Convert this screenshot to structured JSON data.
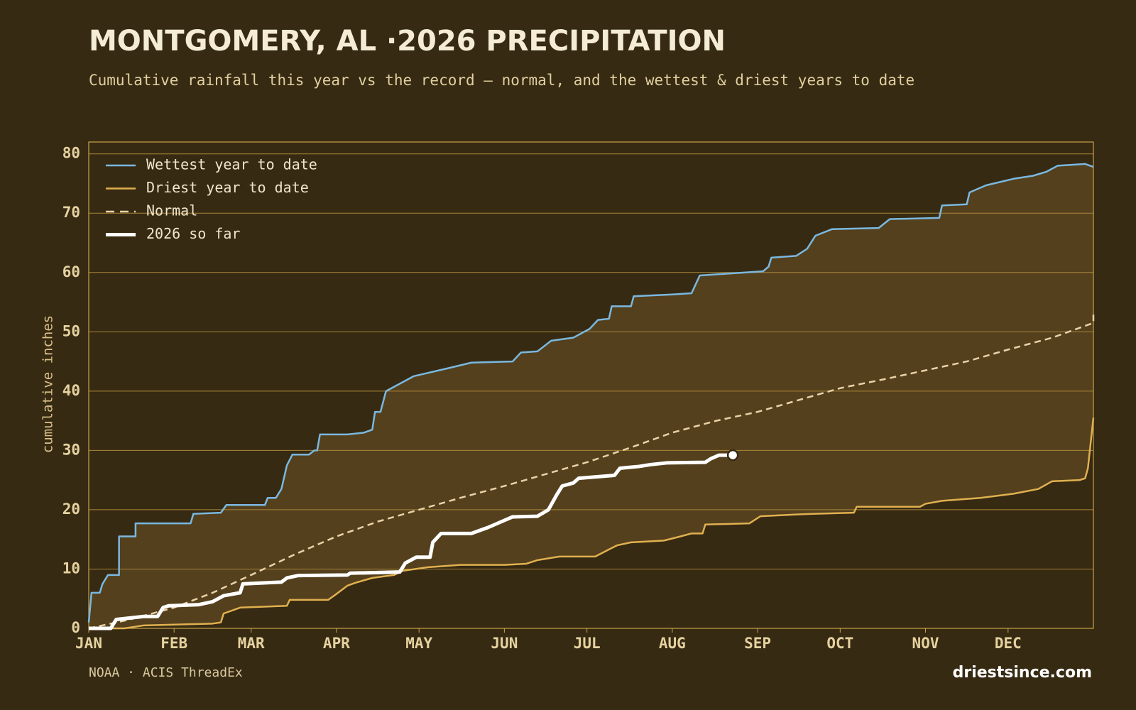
{
  "chart_data": {
    "type": "line",
    "title": "MONTGOMERY, AL ·2026 PRECIPITATION",
    "subtitle": "Cumulative rainfall this year vs the record — normal, and the wettest & driest years to date",
    "y_label": "cumulative inches",
    "source": "NOAA · ACIS ThreadEx",
    "credit": "driestsince.com",
    "xlim": [
      0,
      365
    ],
    "xticks": [
      {
        "value": 0,
        "label": "JAN"
      },
      {
        "value": 31,
        "label": "FEB"
      },
      {
        "value": 59,
        "label": "MAR"
      },
      {
        "value": 90,
        "label": "APR"
      },
      {
        "value": 120,
        "label": "MAY"
      },
      {
        "value": 151,
        "label": "JUN"
      },
      {
        "value": 181,
        "label": "JUL"
      },
      {
        "value": 212,
        "label": "AUG"
      },
      {
        "value": 243,
        "label": "SEP"
      },
      {
        "value": 273,
        "label": "OCT"
      },
      {
        "value": 304,
        "label": "NOV"
      },
      {
        "value": 334,
        "label": "DEC"
      }
    ],
    "ylim": [
      0,
      82
    ],
    "yticks": [
      0,
      10,
      20,
      30,
      40,
      50,
      60,
      70,
      80
    ],
    "grid": true,
    "legend": "upper left",
    "band_color": "#54401d",
    "series": [
      {
        "name": "Wettest year to date",
        "color": "#7ab8e0",
        "width": 2.5,
        "dash": false,
        "x": [
          0,
          1,
          4,
          5,
          7,
          11,
          11,
          17,
          17,
          37,
          38,
          48,
          50,
          64,
          65,
          68,
          70,
          72,
          74,
          80,
          82,
          83,
          84,
          94,
          100,
          103,
          104,
          106,
          108,
          118,
          130,
          139,
          154,
          157,
          163,
          168,
          176,
          182,
          185,
          189,
          190,
          197,
          198,
          212,
          219,
          222,
          245,
          247,
          248,
          257,
          261,
          264,
          270,
          287,
          291,
          309,
          310,
          319,
          320,
          326,
          336,
          343,
          348,
          352,
          362,
          365
        ],
        "values": [
          1,
          6,
          6,
          7.5,
          9,
          9,
          15.5,
          15.5,
          17.7,
          17.7,
          19.3,
          19.5,
          20.8,
          20.8,
          22,
          22,
          23.5,
          27.5,
          29.3,
          29.3,
          30,
          30,
          32.7,
          32.7,
          33,
          33.5,
          36.5,
          36.5,
          40,
          42.5,
          43.8,
          44.8,
          45,
          46.5,
          46.7,
          48.5,
          49,
          50.5,
          52,
          52.2,
          54.3,
          54.3,
          56,
          56.3,
          56.5,
          59.5,
          60.2,
          61,
          62.5,
          62.8,
          64,
          66.2,
          67.3,
          67.5,
          69,
          69.2,
          71.3,
          71.5,
          73.5,
          74.7,
          75.8,
          76.3,
          77,
          78,
          78.3,
          77.8
        ]
      },
      {
        "name": "Driest year to date",
        "color": "#e0b050",
        "width": 2.5,
        "dash": false,
        "x": [
          0,
          13,
          20,
          45,
          48,
          49,
          55,
          72,
          73,
          87,
          90,
          94,
          97,
          103,
          111,
          114,
          123,
          135,
          151,
          159,
          163,
          171,
          184,
          189,
          192,
          197,
          209,
          215,
          219,
          223,
          224,
          240,
          244,
          257,
          263,
          278,
          279,
          302,
          304,
          310,
          324,
          336,
          345,
          350,
          360,
          362,
          363,
          365
        ],
        "values": [
          0,
          0,
          0.5,
          0.8,
          1,
          2.5,
          3.5,
          3.8,
          4.8,
          4.8,
          5.8,
          7.2,
          7.7,
          8.5,
          9,
          9.7,
          10.3,
          10.7,
          10.7,
          10.9,
          11.5,
          12.1,
          12.1,
          13.3,
          14,
          14.5,
          14.8,
          15.5,
          16,
          16,
          17.5,
          17.7,
          18.9,
          19.2,
          19.3,
          19.5,
          20.5,
          20.5,
          21,
          21.5,
          22,
          22.7,
          23.5,
          24.8,
          25,
          25.3,
          27,
          35.5
        ]
      },
      {
        "name": "Normal",
        "color": "#e8d3a8",
        "width": 2.5,
        "dash": true,
        "x": [
          0,
          15,
          31,
          45,
          59,
          75,
          90,
          105,
          120,
          135,
          151,
          166,
          181,
          197,
          212,
          228,
          243,
          258,
          273,
          289,
          304,
          319,
          334,
          350,
          365,
          365
        ],
        "values": [
          0,
          1.5,
          3.5,
          6,
          9,
          12.5,
          15.5,
          18,
          20,
          22,
          24,
          26,
          28,
          30.5,
          33,
          35,
          36.5,
          38.5,
          40.5,
          42,
          43.5,
          45,
          47,
          49,
          51.5,
          53
        ]
      },
      {
        "name": "2026 so far",
        "color": "#ffffff",
        "width": 5,
        "dash": false,
        "x": [
          0,
          8,
          10,
          20,
          25,
          27,
          29,
          40,
          45,
          49,
          55,
          56,
          70,
          72,
          76,
          94,
          95,
          113,
          115,
          119,
          124,
          125,
          128,
          139,
          145,
          150,
          154,
          163,
          167,
          170,
          172,
          176,
          178,
          191,
          193,
          200,
          204,
          210,
          224,
          226,
          229,
          234
        ],
        "values": [
          0,
          0,
          1.5,
          2,
          2,
          3.5,
          3.8,
          4,
          4.5,
          5.5,
          6,
          7.5,
          7.8,
          8.5,
          8.9,
          9,
          9.3,
          9.5,
          11,
          12,
          12,
          14.5,
          16,
          16,
          17,
          18,
          18.8,
          18.9,
          20,
          22.5,
          24,
          24.5,
          25.3,
          25.8,
          27,
          27.3,
          27.6,
          27.9,
          28,
          28.6,
          29.2,
          29.2
        ]
      }
    ]
  }
}
